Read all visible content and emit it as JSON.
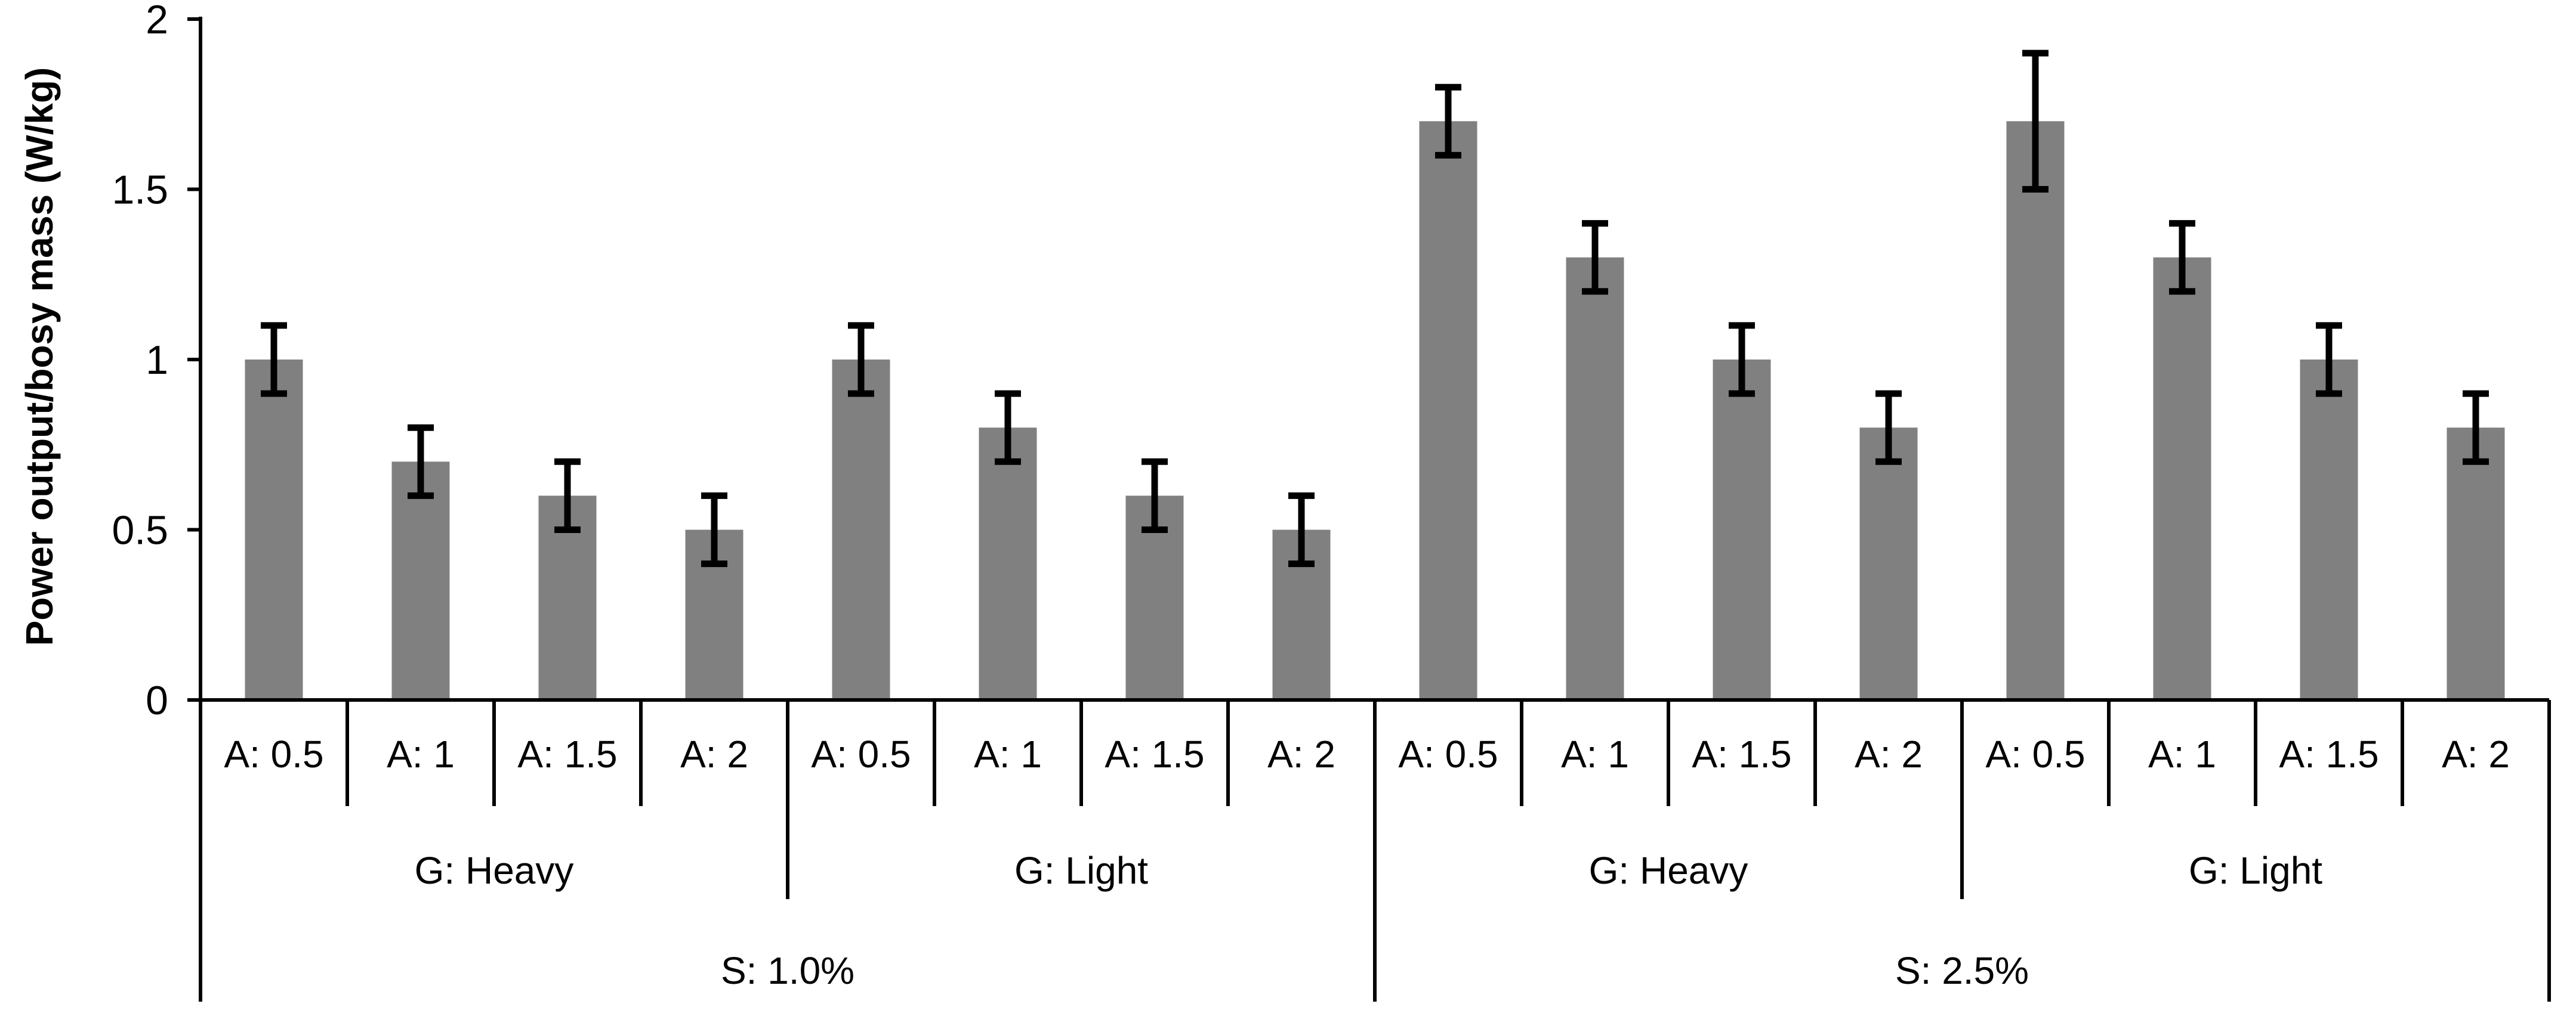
{
  "chart_data": {
    "type": "bar",
    "ylabel": "Power output/bosy mass (W/kg)",
    "xlabel": "",
    "ylim": [
      0,
      2
    ],
    "yticks": [
      0,
      0.5,
      1,
      1.5,
      2
    ],
    "ytick_labels": [
      "0",
      "0.5",
      "1",
      "1.5",
      "2"
    ],
    "grid": false,
    "legend": "none",
    "bar_color": "#808080",
    "categories": [
      "A: 0.5",
      "A: 1",
      "A: 1.5",
      "A: 2",
      "A: 0.5",
      "A: 1",
      "A: 1.5",
      "A: 2",
      "A: 0.5",
      "A: 1",
      "A: 1.5",
      "A: 2",
      "A: 0.5",
      "A: 1",
      "A: 1.5",
      "A: 2"
    ],
    "group_labels": [
      "G: Heavy",
      "G: Light",
      "G: Heavy",
      "G: Light"
    ],
    "supergroup_labels": [
      "S: 1.0%",
      "S: 2.5%"
    ],
    "values": [
      1.0,
      0.7,
      0.6,
      0.5,
      1.0,
      0.8,
      0.6,
      0.5,
      1.7,
      1.3,
      1.0,
      0.8,
      1.7,
      1.3,
      1.0,
      0.8
    ],
    "errors": [
      0.1,
      0.1,
      0.1,
      0.1,
      0.1,
      0.1,
      0.1,
      0.1,
      0.1,
      0.1,
      0.1,
      0.1,
      0.2,
      0.1,
      0.1,
      0.1
    ]
  }
}
